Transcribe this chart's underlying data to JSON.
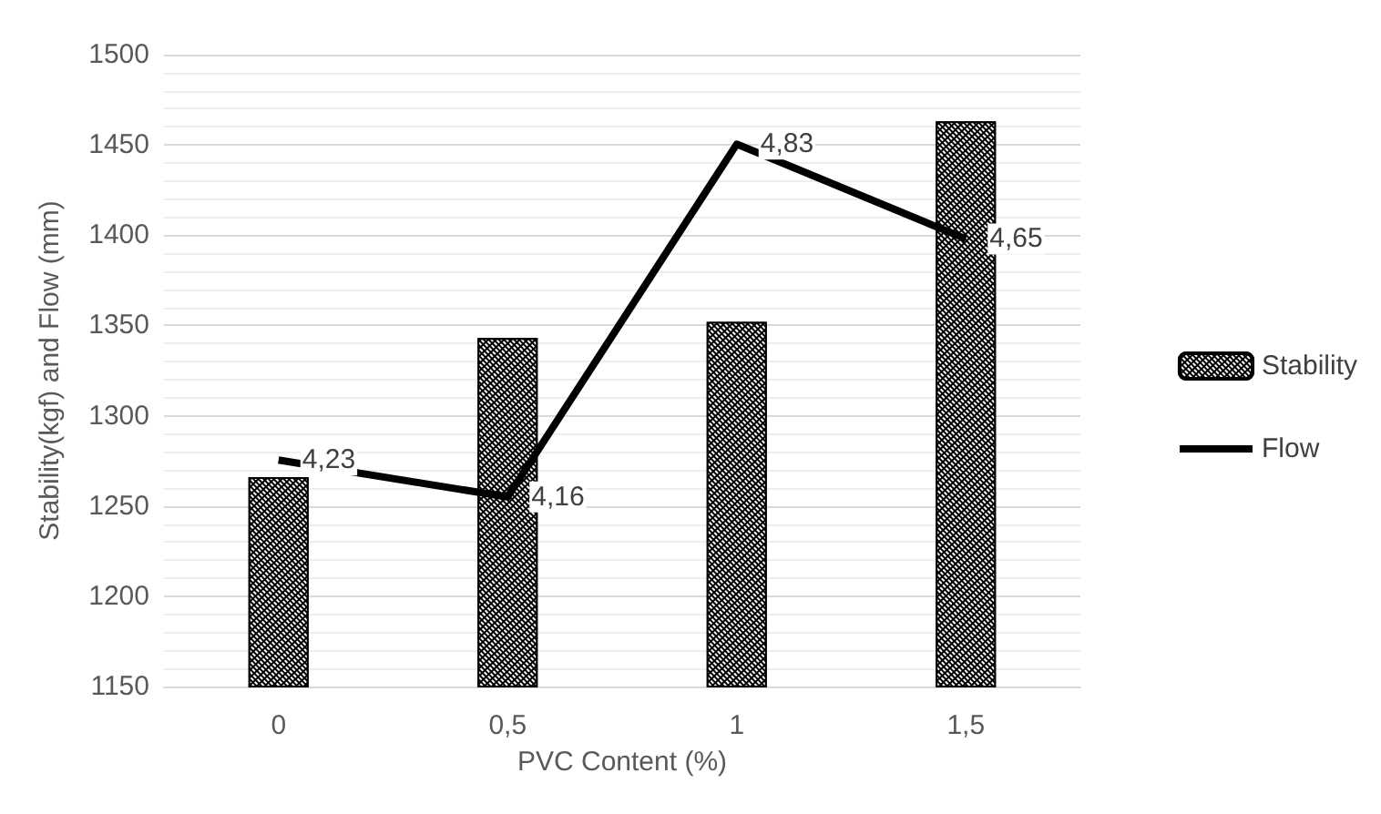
{
  "chart_data": {
    "type": "bar",
    "categories": [
      "0",
      "0,5",
      "1",
      "1,5"
    ],
    "xlabel": "PVC Content (%)",
    "ylabel": "Stability(kgf) and Flow (mm)",
    "series": [
      {
        "name": "Stability",
        "color": "#000000",
        "values": [
          1266,
          1343,
          1352,
          1463
        ]
      },
      {
        "name": "Flow",
        "type": "line",
        "axis": "y2",
        "color": "#000000",
        "values": [
          4.23,
          4.16,
          4.83,
          4.65
        ],
        "value_labels": [
          "4,23",
          "4,16",
          "4,83",
          "4,65"
        ],
        "marker": "none"
      }
    ],
    "ylim": [
      1150,
      1500
    ],
    "yticks": [
      1150,
      1200,
      1250,
      1300,
      1350,
      1400,
      1450,
      1500
    ],
    "y2lim": [
      3.8,
      5.0
    ],
    "grid": "y",
    "legend": "right"
  }
}
